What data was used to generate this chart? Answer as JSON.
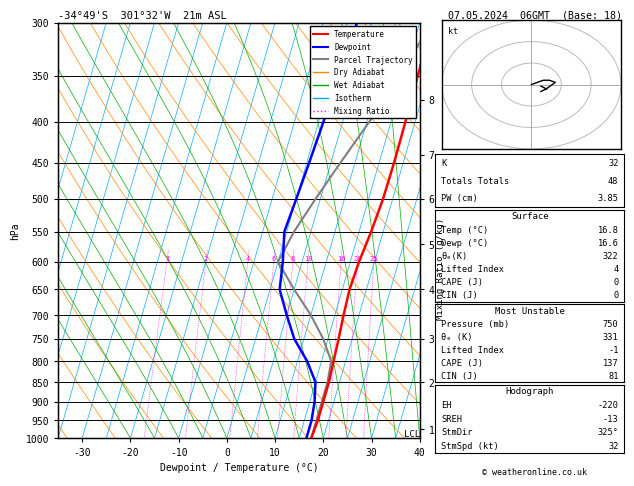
{
  "title_left": "-34°49'S  301°32'W  21m ASL",
  "title_right": "07.05.2024  06GMT  (Base: 18)",
  "xlabel": "Dewpoint / Temperature (°C)",
  "ylabel_left": "hPa",
  "ylabel_right_mix": "Mixing Ratio (g/kg)",
  "lcl_label": "LCL",
  "pressure_levels": [
    300,
    350,
    400,
    450,
    500,
    550,
    600,
    650,
    700,
    750,
    800,
    850,
    900,
    950,
    1000
  ],
  "temp_x": [
    17.5,
    17.8,
    18.0,
    18.1,
    18.0,
    17.5,
    16.8,
    16.5,
    16.8,
    17.2,
    17.5,
    17.8,
    17.8,
    17.8,
    17.5
  ],
  "dewp_x": [
    2.0,
    1.5,
    1.0,
    0.5,
    0.0,
    -0.5,
    1.0,
    2.0,
    5.0,
    8.0,
    12.0,
    15.0,
    16.0,
    16.5,
    16.5
  ],
  "parcel_x": [
    17.5,
    14.0,
    10.5,
    7.0,
    4.0,
    1.5,
    0.0,
    5.0,
    10.0,
    14.0,
    17.0,
    17.5,
    17.5,
    17.5,
    17.5
  ],
  "temp_color": "#ff0000",
  "dewp_color": "#0000ff",
  "parcel_color": "#808080",
  "dry_adiabat_color": "#ff8800",
  "wet_adiabat_color": "#00aa00",
  "isotherm_color": "#00aaff",
  "mixing_ratio_color": "#ff00ff",
  "background_color": "#ffffff",
  "xmin": -35,
  "xmax": 40,
  "pmin": 300,
  "pmax": 1000,
  "skew_factor": 25.0,
  "km_ticks": [
    1,
    2,
    3,
    4,
    5,
    6,
    7,
    8
  ],
  "km_pressures": [
    975,
    850,
    750,
    650,
    570,
    500,
    440,
    375
  ],
  "mix_ratios": [
    1,
    2,
    4,
    6,
    8,
    10,
    16,
    20,
    25
  ],
  "K": 32,
  "Totals_Totals": 48,
  "PW_cm": 3.85,
  "surf_temp": 16.8,
  "surf_dewp": 16.6,
  "surf_theta_e": 322,
  "surf_lifted_index": 4,
  "surf_CAPE": 0,
  "surf_CIN": 0,
  "mu_pressure": 750,
  "mu_theta_e": 331,
  "mu_lifted_index": -1,
  "mu_CAPE": 137,
  "mu_CIN": 81,
  "EH": -220,
  "SREH": -13,
  "StmDir": "325°",
  "StmSpd": 32,
  "copyright": "© weatheronline.co.uk"
}
